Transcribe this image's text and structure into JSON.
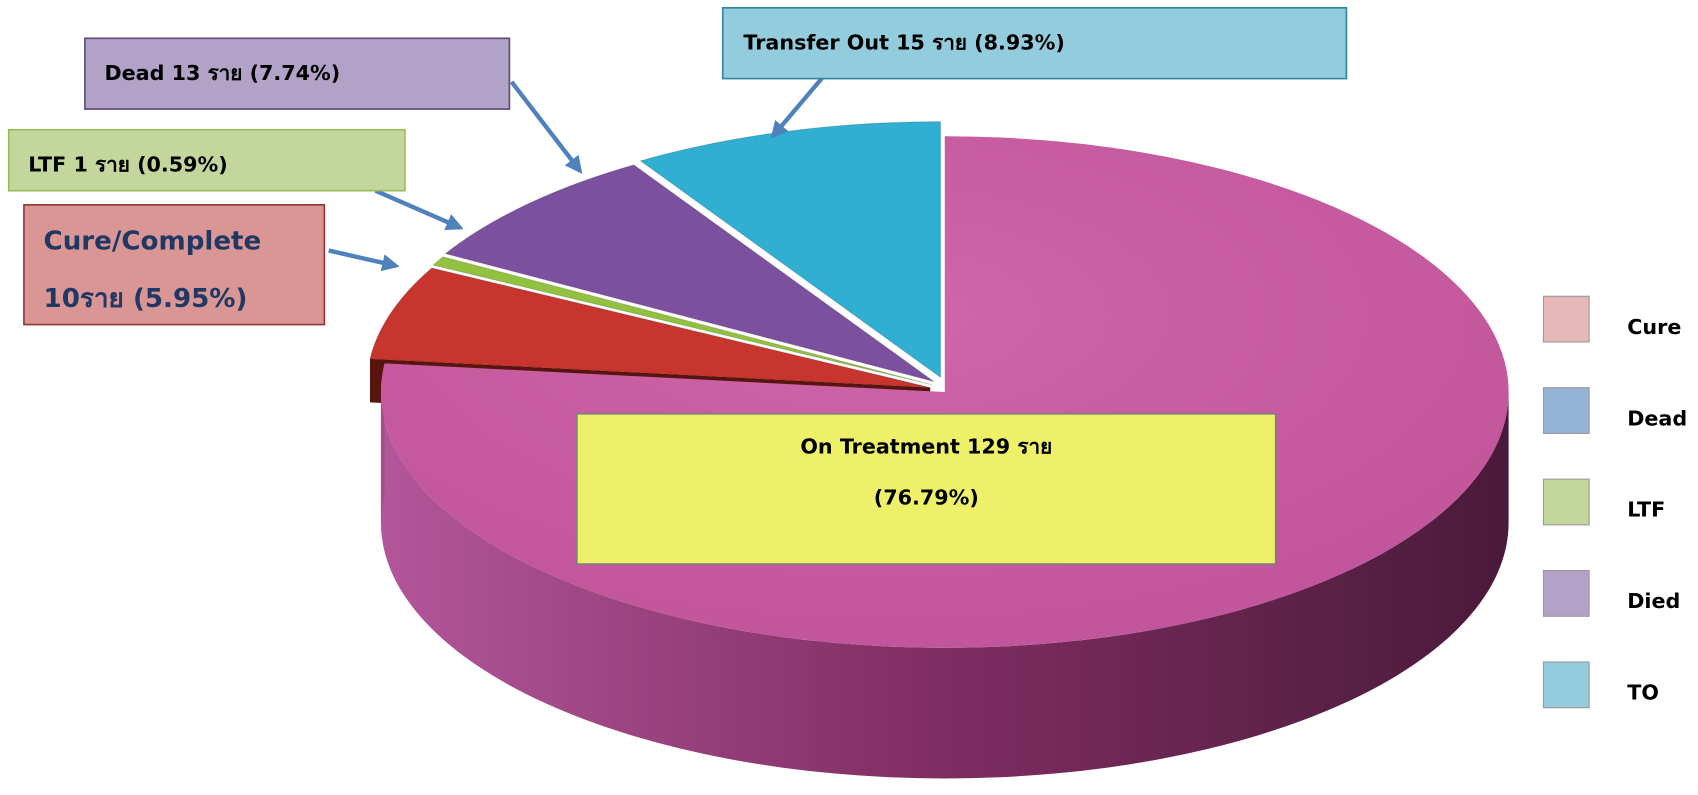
{
  "chart_data": {
    "type": "pie",
    "categories": [
      "On Treatment",
      "Cure/Complete",
      "LTF",
      "Dead",
      "Transfer Out"
    ],
    "values": [
      76.79,
      5.95,
      0.59,
      7.74,
      8.93
    ],
    "colors": [
      "#cc5aa3",
      "#c8352f",
      "#92c13f",
      "#7b519f",
      "#30afd2"
    ],
    "value_labels": [
      [
        "On Treatment 129 ราย",
        "(76.79%)"
      ],
      [
        "Cure/Complete",
        "10ราย (5.95%)"
      ],
      [
        "LTF 1 ราย (0.59%)"
      ],
      [
        "Dead 13 ราย (7.74%)"
      ],
      [
        "Transfer Out 15 ราย (8.93%)"
      ]
    ],
    "legend": [
      {
        "name": "Cure",
        "color": "#e6b9b8"
      },
      {
        "name": "Dead",
        "color": "#95b3d7"
      },
      {
        "name": "LTF",
        "color": "#c3d69b"
      },
      {
        "name": "Died",
        "color": "#b3a2c7"
      },
      {
        "name": "TO",
        "color": "#93cddd"
      }
    ]
  }
}
